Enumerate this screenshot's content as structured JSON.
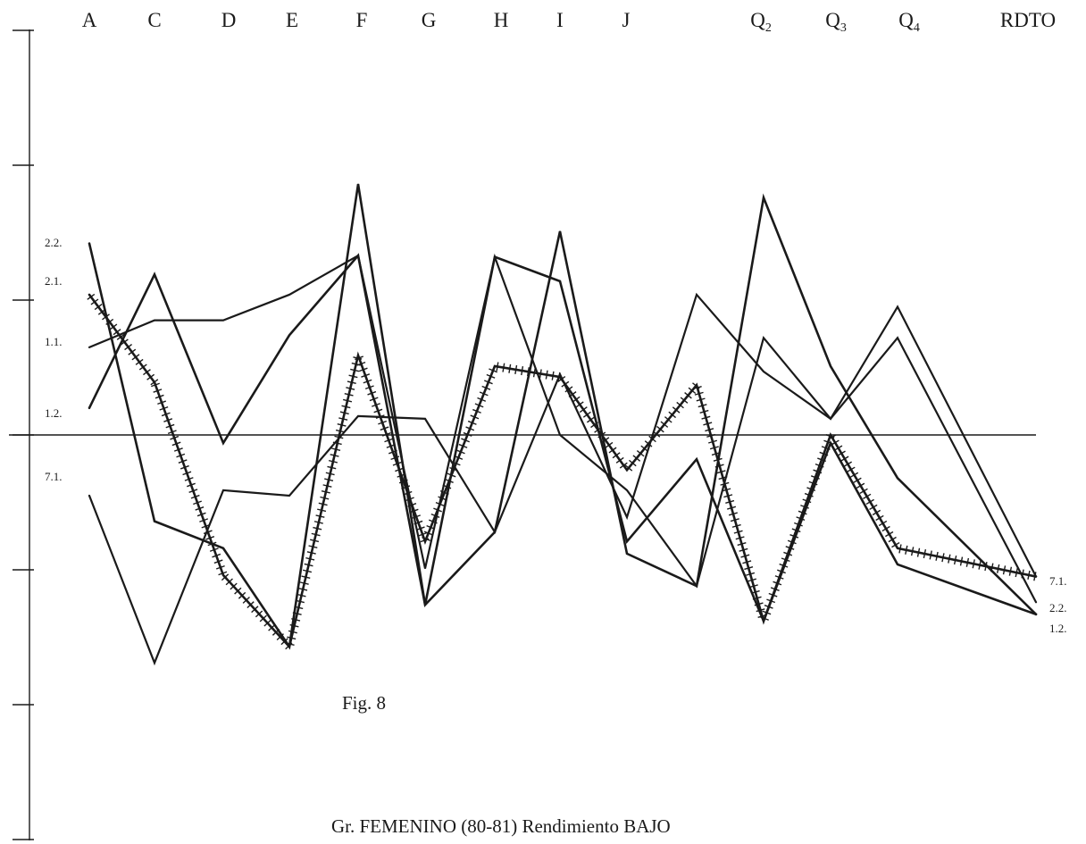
{
  "chart_data": {
    "type": "line",
    "title": "Gr. FEMENINO (80-81) Rendimiento BAJO",
    "figure_label": "Fig. 8",
    "categories": [
      {
        "base": "A",
        "sub": ""
      },
      {
        "base": "C",
        "sub": ""
      },
      {
        "base": "D",
        "sub": ""
      },
      {
        "base": "E",
        "sub": ""
      },
      {
        "base": "F",
        "sub": ""
      },
      {
        "base": "G",
        "sub": ""
      },
      {
        "base": "H",
        "sub": ""
      },
      {
        "base": "I",
        "sub": ""
      },
      {
        "base": "J",
        "sub": ""
      },
      {
        "base": "",
        "sub": ""
      },
      {
        "base": "Q",
        "sub": "2"
      },
      {
        "base": "Q",
        "sub": "3"
      },
      {
        "base": "Q",
        "sub": "4"
      },
      {
        "base": "RDTO",
        "sub": ""
      }
    ],
    "ylim": [
      -3,
      3
    ],
    "axis_ticks": [
      -3,
      -2,
      -1,
      0,
      1,
      2,
      3
    ],
    "reference_line": 0,
    "left_labels": [
      "2.2.",
      "2.1.",
      "1.1.",
      "1.2.",
      "7.1."
    ],
    "right_labels": [
      "7.1.",
      "2.2.",
      "1.2."
    ],
    "series": [
      {
        "name": "2.2.",
        "values": [
          1.42,
          -0.64,
          -0.84,
          -1.57,
          1.86,
          -1.26,
          -0.72,
          1.51,
          -0.88,
          -1.12,
          1.76,
          0.51,
          -0.32,
          -1.33
        ],
        "style": "solid"
      },
      {
        "name": "2.1.",
        "values": [
          1.04,
          0.39,
          -1.04,
          -1.57,
          0.59,
          -0.79,
          0.51,
          0.43,
          -0.26,
          0.37,
          -1.38,
          0.0,
          -0.84,
          -1.05
        ],
        "style": "hatched"
      },
      {
        "name": "1.1.",
        "values": [
          0.65,
          0.85,
          0.85,
          1.04,
          1.33,
          -0.99,
          1.32,
          0.0,
          -0.41,
          -1.12,
          0.72,
          0.12,
          0.95,
          -1.05
        ],
        "style": "solid-thin"
      },
      {
        "name": "1.2.",
        "values": [
          0.2,
          1.19,
          -0.06,
          0.74,
          1.33,
          -1.26,
          1.32,
          1.14,
          -0.79,
          -0.18,
          -1.38,
          -0.06,
          -0.96,
          -1.33
        ],
        "style": "solid"
      },
      {
        "name": "7.1.",
        "values": [
          -0.45,
          -1.69,
          -0.41,
          -0.45,
          0.14,
          0.12,
          -0.72,
          0.45,
          -0.61,
          1.04,
          0.47,
          0.12,
          0.72,
          -1.24
        ],
        "style": "solid-thin"
      }
    ]
  }
}
